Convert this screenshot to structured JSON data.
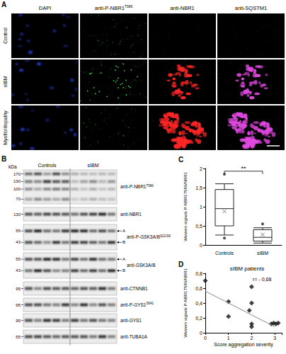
{
  "panels": {
    "A": {
      "panel_label": "A",
      "columns": [
        {
          "text": "DAPI"
        },
        {
          "text": "anti-P-NBR1",
          "sup": "T586"
        },
        {
          "text": "anti-NBR1"
        },
        {
          "text": "anti-SQSTM1"
        }
      ],
      "rows": [
        "Control",
        "sIBM",
        "Myofibrillopathy"
      ]
    },
    "B": {
      "panel_label": "B",
      "unit": "kDa",
      "groups": [
        "Controls",
        "sIBM"
      ],
      "blots": [
        {
          "text": "anti-P-NBR1",
          "sup": "T586",
          "markers": [
            170,
            130,
            100,
            70
          ]
        },
        {
          "text": "anti-NBR1",
          "markers": [
            130
          ]
        },
        {
          "text": "anti-P-GSK3A/B",
          "sup": "S21/S9",
          "markers": [
            55,
            43
          ],
          "band_marks": [
            "A",
            "B"
          ]
        },
        {
          "text": "anti-GSK3A/B",
          "markers": [
            55,
            43
          ],
          "band_marks": [
            "A",
            "B"
          ]
        },
        {
          "text": "anti-CTNNB1",
          "markers": [
            95
          ]
        },
        {
          "text": "anti-P-GYS1",
          "sup": "S641",
          "markers": [
            95
          ]
        },
        {
          "text": "anti-GYS1",
          "markers": [
            95
          ]
        },
        {
          "text": "anti-TUBA1A",
          "markers": [
            55
          ]
        }
      ]
    }
  },
  "chart_data": [
    {
      "type": "boxplot",
      "panel_label": "C",
      "ylabel": "Western signals P-NBR1T586/NBR1",
      "categories": [
        "Controls",
        "sIBM"
      ],
      "boxes": [
        [
          0.26,
          0.5,
          0.95,
          1.45,
          1.6
        ],
        [
          0.05,
          0.1,
          0.2,
          0.4,
          0.45
        ]
      ],
      "outliers": [
        [
          1.85,
          0.18
        ],
        [
          0.55
        ]
      ],
      "means": [
        0.88,
        0.27
      ],
      "marker": "x",
      "ylim": [
        0,
        2
      ],
      "yticks": [
        0,
        {
          "value": 0.5,
          "label": "0,5"
        },
        1,
        {
          "value": 1.5,
          "label": "1,5"
        },
        2
      ],
      "grid": false,
      "annotations": [
        {
          "text": "**",
          "y": 1.93
        }
      ]
    },
    {
      "type": "scatter",
      "panel_label": "D",
      "title": "sIBM patients",
      "xlabel": "Score aggregation severity",
      "ylabel": "Western signals P-NBR1T586/NBR1",
      "x": [
        0,
        1,
        1,
        2,
        2,
        1.9,
        2,
        2,
        2.85,
        2.95,
        3.05,
        3.15
      ],
      "values": [
        0.7,
        0.42,
        0.22,
        0.62,
        0.4,
        0.3,
        0.12,
        0.08,
        0.12,
        0.13,
        0.12,
        0.13
      ],
      "marker": "diamond",
      "trend_line": {
        "x": [
          0,
          3
        ],
        "values": [
          0.56,
          0.08
        ]
      },
      "xlim": [
        0,
        3.3
      ],
      "xticks": [
        0,
        1,
        2,
        3
      ],
      "ylim": [
        0,
        0.8
      ],
      "yticks": [
        0,
        {
          "value": 0.2,
          "label": "0,2"
        },
        {
          "value": 0.4,
          "label": "0,4"
        },
        {
          "value": 0.6,
          "label": "0,6"
        },
        {
          "value": 0.8,
          "label": "0,8"
        }
      ],
      "grid": false,
      "annotations": [
        {
          "text": "r= - 0,68",
          "x": 2.05,
          "y": 0.72
        }
      ]
    }
  ]
}
